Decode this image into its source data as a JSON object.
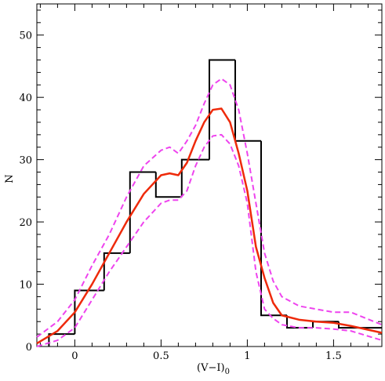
{
  "chart_data": {
    "type": "line",
    "xlabel": "(V−I)",
    "xlabel_subscript": "0",
    "ylabel": "N",
    "xlim": [
      -0.22,
      1.78
    ],
    "ylim": [
      0,
      55
    ],
    "xticks": [
      0,
      0.5,
      1,
      1.5
    ],
    "xtick_labels": [
      "0",
      "0.5",
      "1",
      "1.5"
    ],
    "yticks": [
      0,
      10,
      20,
      30,
      40,
      50
    ],
    "ytick_labels": [
      "0",
      "10",
      "20",
      "30",
      "40",
      "50"
    ],
    "histogram": {
      "bin_edges": [
        -0.15,
        0.0,
        0.17,
        0.32,
        0.47,
        0.62,
        0.78,
        0.93,
        1.08,
        1.23,
        1.38,
        1.53,
        1.78
      ],
      "counts": [
        2,
        9,
        15,
        28,
        24,
        30,
        46,
        33,
        5,
        3,
        4,
        3
      ]
    },
    "series": [
      {
        "role": "smoothed",
        "color": "#ee2a0a",
        "dash": "solid",
        "x": [
          -0.22,
          -0.1,
          0.0,
          0.1,
          0.2,
          0.3,
          0.4,
          0.5,
          0.55,
          0.6,
          0.65,
          0.7,
          0.75,
          0.8,
          0.85,
          0.9,
          0.95,
          1.0,
          1.05,
          1.1,
          1.15,
          1.2,
          1.3,
          1.4,
          1.5,
          1.6,
          1.78
        ],
        "y": [
          0.5,
          2.5,
          5.5,
          10,
          15,
          20,
          24.5,
          27.5,
          27.8,
          27.5,
          29.5,
          33,
          36,
          38,
          38.2,
          36,
          31,
          25,
          16,
          11,
          7,
          5,
          4.3,
          4,
          3.8,
          3.3,
          2.2
        ]
      },
      {
        "role": "upper-bound",
        "color": "#ee44ee",
        "dash": "dashed",
        "x": [
          -0.22,
          -0.1,
          0.0,
          0.1,
          0.2,
          0.3,
          0.4,
          0.5,
          0.55,
          0.6,
          0.65,
          0.7,
          0.75,
          0.8,
          0.85,
          0.9,
          0.95,
          1.0,
          1.05,
          1.1,
          1.15,
          1.2,
          1.3,
          1.4,
          1.5,
          1.6,
          1.78
        ],
        "y": [
          1.5,
          4,
          7.5,
          13,
          18,
          24,
          29,
          31.5,
          32,
          31,
          33,
          35.5,
          39,
          42,
          43,
          42,
          38,
          31,
          23,
          15,
          10.5,
          8,
          6.5,
          6,
          5.5,
          5.5,
          3.5
        ]
      },
      {
        "role": "lower-bound",
        "color": "#ee44ee",
        "dash": "dashed",
        "x": [
          -0.22,
          -0.1,
          0.0,
          0.1,
          0.2,
          0.3,
          0.4,
          0.5,
          0.55,
          0.6,
          0.65,
          0.7,
          0.75,
          0.8,
          0.85,
          0.9,
          0.95,
          1.0,
          1.05,
          1.1,
          1.15,
          1.2,
          1.3,
          1.4,
          1.5,
          1.6,
          1.78
        ],
        "y": [
          0,
          1,
          3,
          7.5,
          12,
          16,
          20,
          23,
          23.5,
          23.5,
          25,
          29,
          32,
          33.8,
          34,
          32.5,
          29,
          23,
          12,
          6,
          4.5,
          3.5,
          3,
          3,
          2.8,
          2.5,
          1
        ]
      }
    ],
    "grid": false,
    "histogram_color": "#000000"
  }
}
